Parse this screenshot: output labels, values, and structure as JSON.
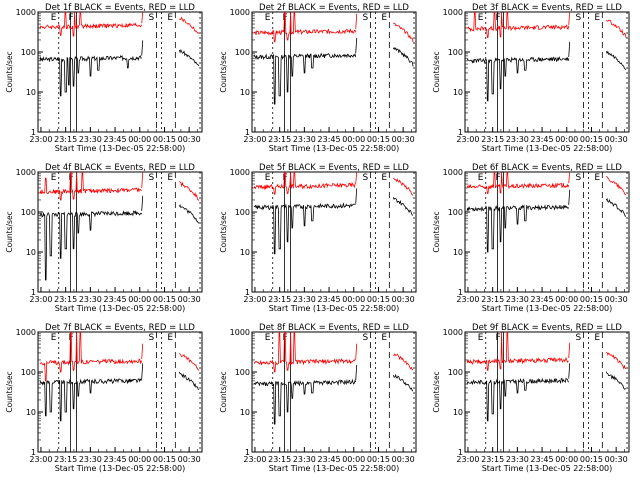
{
  "chart_data": [
    {
      "type": "line",
      "title": "Det 1f BLACK = Events, RED = LLD",
      "xlabel": "Start Time (13-Dec-05 22:58:00)",
      "ylabel": "Counts/sec",
      "y_scale": "log",
      "ylim": [
        1,
        1000
      ],
      "xlim_labels": [
        "23:00",
        "23:15",
        "23:30",
        "23:45",
        "00:00",
        "00:15",
        "00:30"
      ],
      "y_ticks": [
        "1",
        "10",
        "100",
        "1000"
      ],
      "markers": [
        "E",
        "F",
        "S",
        "E"
      ],
      "series": [
        {
          "color": "#000000",
          "level": 65,
          "dips": [
            {
              "t": 23.2,
              "v": 8
            },
            {
              "t": 23.25,
              "v": 10
            },
            {
              "t": 23.28,
              "v": 15
            },
            {
              "t": 23.33,
              "v": 14
            },
            {
              "t": 23.38,
              "v": 30
            },
            {
              "t": 23.5,
              "v": 25
            },
            {
              "t": 23.58,
              "v": 35
            },
            {
              "t": 23.88,
              "v": 40
            }
          ]
        },
        {
          "color": "#ff0000",
          "level": 420,
          "spikes": [
            {
              "t": 23.25,
              "v": 980
            },
            {
              "t": 23.34,
              "v": 980
            },
            {
              "t": 23.4,
              "v": 980
            }
          ],
          "dips": [
            {
              "t": 23.2,
              "v": 260
            },
            {
              "t": 23.33,
              "v": 250
            }
          ]
        }
      ]
    },
    {
      "type": "line",
      "title": "Det 2f BLACK = Events, RED = LLD",
      "xlabel": "Start Time (13-Dec-05 22:58:00)",
      "ylabel": "Counts/sec",
      "y_scale": "log",
      "ylim": [
        1,
        1000
      ],
      "xlim_labels": [
        "23:00",
        "23:15",
        "23:30",
        "23:45",
        "00:00",
        "00:15",
        "00:30"
      ],
      "y_ticks": [
        "1",
        "10",
        "100",
        "1000"
      ],
      "markers": [
        "E",
        "F",
        "S",
        "E"
      ],
      "series": [
        {
          "color": "#000000",
          "level": 75,
          "dips": [
            {
              "t": 23.2,
              "v": 5
            },
            {
              "t": 23.25,
              "v": 8
            },
            {
              "t": 23.33,
              "v": 10
            },
            {
              "t": 23.38,
              "v": 25
            },
            {
              "t": 23.5,
              "v": 30
            },
            {
              "t": 23.58,
              "v": 40
            }
          ]
        },
        {
          "color": "#ff0000",
          "level": 300,
          "spikes": [
            {
              "t": 23.3,
              "v": 980
            },
            {
              "t": 23.36,
              "v": 980
            },
            {
              "t": 23.4,
              "v": 980
            }
          ],
          "dips": [
            {
              "t": 23.2,
              "v": 180
            },
            {
              "t": 23.33,
              "v": 200
            }
          ]
        }
      ]
    },
    {
      "type": "line",
      "title": "Det 3f BLACK = Events, RED = LLD",
      "xlabel": "Start Time (13-Dec-05 22:58:00)",
      "ylabel": "Counts/sec",
      "y_scale": "log",
      "ylim": [
        1,
        1000
      ],
      "xlim_labels": [
        "23:00",
        "23:15",
        "23:30",
        "23:45",
        "00:00",
        "00:15",
        "00:30"
      ],
      "y_ticks": [
        "1",
        "10",
        "100",
        "1000"
      ],
      "markers": [
        "E",
        "F",
        "S",
        "E"
      ],
      "series": [
        {
          "color": "#000000",
          "level": 60,
          "dips": [
            {
              "t": 23.2,
              "v": 6
            },
            {
              "t": 23.25,
              "v": 9
            },
            {
              "t": 23.33,
              "v": 12
            },
            {
              "t": 23.38,
              "v": 25
            },
            {
              "t": 23.5,
              "v": 30
            },
            {
              "t": 23.58,
              "v": 35
            }
          ]
        },
        {
          "color": "#ff0000",
          "level": 380,
          "spikes": [
            {
              "t": 23.07,
              "v": 980
            },
            {
              "t": 23.27,
              "v": 980
            },
            {
              "t": 23.34,
              "v": 980
            },
            {
              "t": 23.4,
              "v": 980
            }
          ],
          "dips": [
            {
              "t": 23.2,
              "v": 230
            },
            {
              "t": 23.33,
              "v": 240
            }
          ]
        }
      ]
    },
    {
      "type": "line",
      "title": "Det 4f BLACK = Events, RED = LLD",
      "xlabel": "Start Time (13-Dec-05 22:58:00)",
      "ylabel": "Counts/sec",
      "y_scale": "log",
      "ylim": [
        1,
        1000
      ],
      "xlim_labels": [
        "23:00",
        "23:15",
        "23:30",
        "23:45",
        "00:00",
        "00:15",
        "00:30"
      ],
      "y_ticks": [
        "1",
        "10",
        "100",
        "1000"
      ],
      "markers": [
        "E",
        "F",
        "S",
        "E"
      ],
      "series": [
        {
          "color": "#000000",
          "level": 85,
          "dips": [
            {
              "t": 23.05,
              "v": 2
            },
            {
              "t": 23.1,
              "v": 8
            },
            {
              "t": 23.2,
              "v": 7
            },
            {
              "t": 23.25,
              "v": 12
            },
            {
              "t": 23.33,
              "v": 12
            },
            {
              "t": 23.38,
              "v": 30
            },
            {
              "t": 23.5,
              "v": 35
            }
          ]
        },
        {
          "color": "#ff0000",
          "level": 320,
          "spikes": [
            {
              "t": 23.05,
              "v": 700
            },
            {
              "t": 23.3,
              "v": 980
            },
            {
              "t": 23.36,
              "v": 980
            },
            {
              "t": 23.42,
              "v": 980
            }
          ],
          "dips": [
            {
              "t": 23.2,
              "v": 200
            },
            {
              "t": 23.33,
              "v": 210
            }
          ]
        }
      ]
    },
    {
      "type": "line",
      "title": "Det 5f BLACK = Events, RED = LLD",
      "xlabel": "Start Time (13-Dec-05 22:58:00)",
      "ylabel": "Counts/sec",
      "y_scale": "log",
      "ylim": [
        1,
        1000
      ],
      "xlim_labels": [
        "23:00",
        "23:15",
        "23:30",
        "23:45",
        "00:00",
        "00:15",
        "00:30"
      ],
      "y_ticks": [
        "1",
        "10",
        "100",
        "1000"
      ],
      "markers": [
        "E",
        "F",
        "S",
        "E"
      ],
      "series": [
        {
          "color": "#000000",
          "level": 130,
          "dips": [
            {
              "t": 23.2,
              "v": 9
            },
            {
              "t": 23.25,
              "v": 12
            },
            {
              "t": 23.33,
              "v": 18
            },
            {
              "t": 23.38,
              "v": 40
            },
            {
              "t": 23.5,
              "v": 45
            },
            {
              "t": 23.58,
              "v": 60
            }
          ]
        },
        {
          "color": "#ff0000",
          "level": 420,
          "spikes": [
            {
              "t": 23.3,
              "v": 980
            },
            {
              "t": 23.36,
              "v": 980
            },
            {
              "t": 23.4,
              "v": 980
            }
          ],
          "dips": [
            {
              "t": 23.2,
              "v": 280
            },
            {
              "t": 23.33,
              "v": 290
            }
          ]
        }
      ]
    },
    {
      "type": "line",
      "title": "Det 6f BLACK = Events, RED = LLD",
      "xlabel": "Start Time (13-Dec-05 22:58:00)",
      "ylabel": "Counts/sec",
      "y_scale": "log",
      "ylim": [
        1,
        1000
      ],
      "xlim_labels": [
        "23:00",
        "23:15",
        "23:30",
        "23:45",
        "00:00",
        "00:15",
        "00:30"
      ],
      "y_ticks": [
        "1",
        "10",
        "100",
        "1000"
      ],
      "markers": [
        "E",
        "F",
        "S",
        "E"
      ],
      "series": [
        {
          "color": "#000000",
          "level": 120,
          "dips": [
            {
              "t": 23.2,
              "v": 10
            },
            {
              "t": 23.25,
              "v": 12
            },
            {
              "t": 23.33,
              "v": 18
            },
            {
              "t": 23.38,
              "v": 40
            },
            {
              "t": 23.5,
              "v": 50
            },
            {
              "t": 23.58,
              "v": 60
            }
          ]
        },
        {
          "color": "#ff0000",
          "level": 420,
          "spikes": [
            {
              "t": 23.27,
              "v": 980
            },
            {
              "t": 23.34,
              "v": 980
            },
            {
              "t": 23.4,
              "v": 980
            }
          ],
          "dips": [
            {
              "t": 23.2,
              "v": 290
            },
            {
              "t": 23.33,
              "v": 300
            }
          ]
        }
      ]
    },
    {
      "type": "line",
      "title": "Det 7f BLACK = Events, RED = LLD",
      "xlabel": "Start Time (13-Dec-05 22:58:00)",
      "ylabel": "Counts/sec",
      "y_scale": "log",
      "ylim": [
        1,
        1000
      ],
      "xlim_labels": [
        "23:00",
        "23:15",
        "23:30",
        "23:45",
        "00:00",
        "00:15",
        "00:30"
      ],
      "y_ticks": [
        "1",
        "10",
        "100",
        "1000"
      ],
      "markers": [
        "E",
        "F",
        "S",
        "E"
      ],
      "series": [
        {
          "color": "#000000",
          "level": 55,
          "dips": [
            {
              "t": 23.05,
              "v": 8
            },
            {
              "t": 23.1,
              "v": 10
            },
            {
              "t": 23.2,
              "v": 6
            },
            {
              "t": 23.25,
              "v": 10
            },
            {
              "t": 23.33,
              "v": 12
            },
            {
              "t": 23.38,
              "v": 25
            },
            {
              "t": 23.5,
              "v": 30
            }
          ]
        },
        {
          "color": "#ff0000",
          "level": 170,
          "spikes": [
            {
              "t": 23.3,
              "v": 980
            },
            {
              "t": 23.36,
              "v": 980
            },
            {
              "t": 23.4,
              "v": 980
            }
          ],
          "dips": [
            {
              "t": 23.05,
              "v": 60
            },
            {
              "t": 23.2,
              "v": 100
            },
            {
              "t": 23.33,
              "v": 110
            }
          ]
        }
      ]
    },
    {
      "type": "line",
      "title": "Det 8f BLACK = Events, RED = LLD",
      "xlabel": "Start Time (13-Dec-05 22:58:00)",
      "ylabel": "Counts/sec",
      "y_scale": "log",
      "ylim": [
        1,
        1000
      ],
      "xlim_labels": [
        "23:00",
        "23:15",
        "23:30",
        "23:45",
        "00:00",
        "00:15",
        "00:30"
      ],
      "y_ticks": [
        "1",
        "10",
        "100",
        "1000"
      ],
      "markers": [
        "E",
        "F",
        "S",
        "E"
      ],
      "series": [
        {
          "color": "#000000",
          "level": 50,
          "dips": [
            {
              "t": 23.2,
              "v": 5
            },
            {
              "t": 23.25,
              "v": 8
            },
            {
              "t": 23.33,
              "v": 10
            },
            {
              "t": 23.38,
              "v": 22
            },
            {
              "t": 23.5,
              "v": 28
            },
            {
              "t": 23.58,
              "v": 30
            }
          ]
        },
        {
          "color": "#ff0000",
          "level": 170,
          "spikes": [
            {
              "t": 23.25,
              "v": 980
            },
            {
              "t": 23.3,
              "v": 980
            },
            {
              "t": 23.36,
              "v": 980
            },
            {
              "t": 23.4,
              "v": 980
            }
          ],
          "dips": [
            {
              "t": 23.2,
              "v": 100
            },
            {
              "t": 23.33,
              "v": 110
            }
          ]
        }
      ]
    },
    {
      "type": "line",
      "title": "Det 9f BLACK = Events, RED = LLD",
      "xlabel": "Start Time (13-Dec-05 22:58:00)",
      "ylabel": "Counts/sec",
      "y_scale": "log",
      "ylim": [
        1,
        1000
      ],
      "xlim_labels": [
        "23:00",
        "23:15",
        "23:30",
        "23:45",
        "00:00",
        "00:15",
        "00:30"
      ],
      "y_ticks": [
        "1",
        "10",
        "100",
        "1000"
      ],
      "markers": [
        "E",
        "F",
        "S",
        "E"
      ],
      "series": [
        {
          "color": "#000000",
          "level": 55,
          "dips": [
            {
              "t": 23.2,
              "v": 6
            },
            {
              "t": 23.25,
              "v": 9
            },
            {
              "t": 23.33,
              "v": 12
            },
            {
              "t": 23.38,
              "v": 25
            },
            {
              "t": 23.5,
              "v": 30
            },
            {
              "t": 23.58,
              "v": 35
            }
          ]
        },
        {
          "color": "#ff0000",
          "level": 180,
          "spikes": [
            {
              "t": 23.34,
              "v": 980
            },
            {
              "t": 23.4,
              "v": 980
            }
          ],
          "dips": [
            {
              "t": 23.2,
              "v": 110
            },
            {
              "t": 23.33,
              "v": 120
            }
          ]
        }
      ]
    }
  ]
}
